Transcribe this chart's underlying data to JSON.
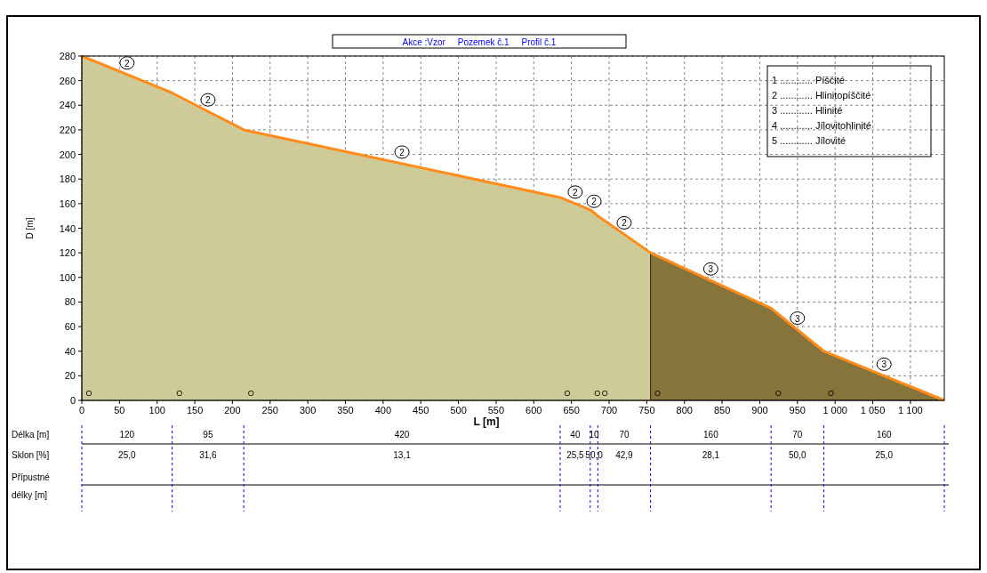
{
  "chart_data": {
    "type": "area",
    "subtitle": "Akce :Vzor     Pozemek č.1     Profil č.1",
    "xlabel": "L [m]",
    "ylabel": "D [m]",
    "xlim": [
      0,
      1145
    ],
    "xticks": [
      0,
      50,
      100,
      150,
      200,
      250,
      300,
      350,
      400,
      450,
      500,
      550,
      600,
      650,
      700,
      750,
      800,
      850,
      900,
      950,
      {
        "value": 1000,
        "label": "1 000"
      },
      {
        "value": 1050,
        "label": "1 050"
      },
      {
        "value": 1100,
        "label": "1 100"
      }
    ],
    "ylim": [
      0,
      280
    ],
    "yticks": [
      0,
      20,
      40,
      60,
      80,
      100,
      120,
      140,
      160,
      180,
      200,
      220,
      240,
      260,
      280
    ],
    "grid": true,
    "marker": "none",
    "line_style": "solid",
    "series": [
      {
        "color": "#cfcb98",
        "x": [
          0,
          120,
          215,
          635,
          675,
          685,
          755
        ],
        "values": [
          280,
          250,
          220,
          165,
          155,
          150,
          120
        ]
      },
      {
        "color": "#86743a",
        "x": [
          755,
          915,
          985,
          1145
        ],
        "values": [
          120,
          75,
          40,
          0
        ]
      },
      {
        "type": "line",
        "color": "#ff8c1a",
        "x": [
          0,
          120,
          215,
          635,
          675,
          685,
          755,
          915,
          985,
          1145
        ],
        "values": [
          280,
          250,
          220,
          165,
          155,
          150,
          120,
          75,
          40,
          0
        ]
      }
    ],
    "annotations": [
      "1 ............ Píščité",
      "2 ............ Hlinitopíščité",
      "3 ............ Hlinité",
      "4 ............ Jílovitohlinité",
      "5 ............ Jílovité",
      "Délka [m]",
      "Sklon [%]",
      "Přípustné",
      "délky [m]",
      "120",
      "95",
      "420",
      "40",
      "10",
      "70",
      "160",
      "70",
      "160",
      "25,0",
      "31,6",
      "13,1",
      "25,5",
      "50,0",
      "42,9",
      "28,1",
      "50,0",
      "25,0",
      "2",
      "2",
      "2",
      "2",
      "2",
      "2",
      "3",
      "3",
      "3",
      "O",
      "O",
      "O",
      "O",
      "O",
      "O",
      "O",
      "O",
      "O"
    ]
  }
}
